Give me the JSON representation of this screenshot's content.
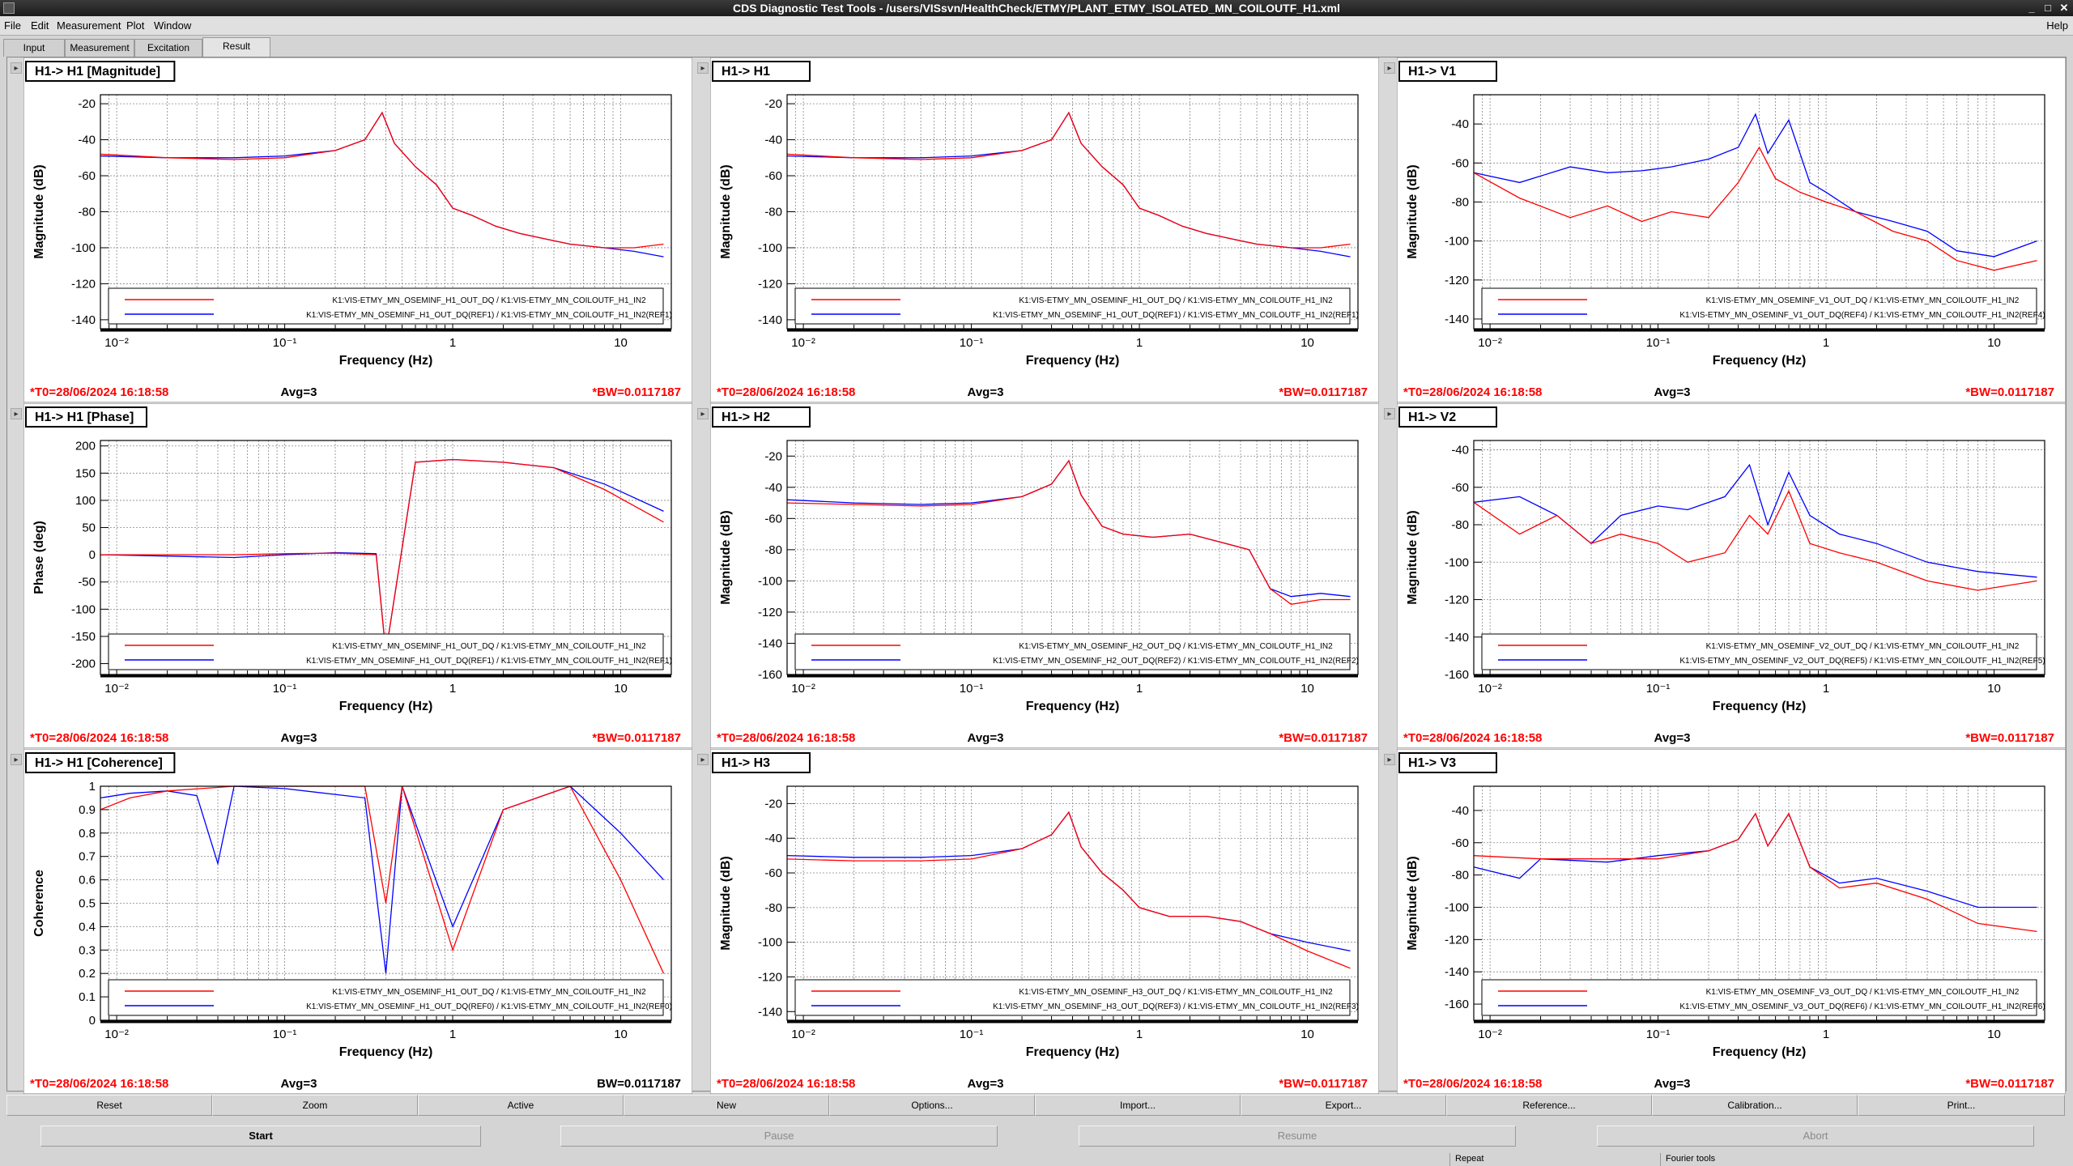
{
  "window": {
    "title": "CDS Diagnostic Test Tools - /users/VISsvn/HealthCheck/ETMY/PLANT_ETMY_ISOLATED_MN_COILOUTF_H1.xml"
  },
  "menu": {
    "items": [
      "File",
      "Edit",
      "Measurement",
      "Plot",
      "Window"
    ],
    "help": "Help"
  },
  "tabs": [
    "Input",
    "Measurement",
    "Excitation",
    "Result"
  ],
  "colors": {
    "ref": "#0000ff",
    "meas": "#ff0000"
  },
  "pane_footer": {
    "t0": "*T0=28/06/2024 16:18:58",
    "avg": "Avg=3",
    "bw": "*BW=0.0117187",
    "bw_plain": "BW=0.0117187"
  },
  "chart_data": [
    {
      "type": "line",
      "title": "H1-> H1 [Magnitude]",
      "xlabel": "Frequency (Hz)",
      "ylabel": "Magnitude (dB)",
      "xscale": "log",
      "xlim": [
        0.008,
        20
      ],
      "ylim": [
        -145,
        -15
      ],
      "yticks": [
        -140,
        -120,
        -100,
        -80,
        -60,
        -40,
        -20
      ],
      "xticks": [
        0.01,
        0.1,
        1,
        10
      ],
      "xtick_labels": [
        "10⁻²",
        "10⁻¹",
        "1",
        "10"
      ],
      "legend": [
        "K1:VIS-ETMY_MN_OSEMINF_H1_OUT_DQ / K1:VIS-ETMY_MN_COILOUTF_H1_IN2",
        "K1:VIS-ETMY_MN_OSEMINF_H1_OUT_DQ(REF1) / K1:VIS-ETMY_MN_COILOUTF_H1_IN2(REF1)"
      ],
      "series": [
        {
          "x": [
            0.008,
            0.02,
            0.05,
            0.1,
            0.2,
            0.3,
            0.38,
            0.45,
            0.6,
            0.8,
            1.0,
            1.3,
            1.8,
            2.5,
            3.5,
            5,
            8,
            12,
            18
          ],
          "values": [
            -48,
            -50,
            -51,
            -50,
            -46,
            -40,
            -25,
            -42,
            -55,
            -65,
            -78,
            -82,
            -88,
            -92,
            -95,
            -98,
            -100,
            -100,
            -98
          ]
        },
        {
          "x": [
            0.008,
            0.02,
            0.05,
            0.1,
            0.2,
            0.3,
            0.38,
            0.45,
            0.6,
            0.8,
            1.0,
            1.3,
            1.8,
            2.5,
            3.5,
            5,
            8,
            12,
            18
          ],
          "values": [
            -49,
            -50,
            -50,
            -49,
            -46,
            -40,
            -25,
            -42,
            -55,
            -65,
            -78,
            -82,
            -88,
            -92,
            -95,
            -98,
            -100,
            -102,
            -105
          ]
        }
      ]
    },
    {
      "type": "line",
      "title": "H1-> H1",
      "xlabel": "Frequency (Hz)",
      "ylabel": "Magnitude (dB)",
      "xscale": "log",
      "xlim": [
        0.008,
        20
      ],
      "ylim": [
        -145,
        -15
      ],
      "yticks": [
        -140,
        -120,
        -100,
        -80,
        -60,
        -40,
        -20
      ],
      "xticks": [
        0.01,
        0.1,
        1,
        10
      ],
      "xtick_labels": [
        "10⁻²",
        "10⁻¹",
        "1",
        "10"
      ],
      "legend": [
        "K1:VIS-ETMY_MN_OSEMINF_H1_OUT_DQ / K1:VIS-ETMY_MN_COILOUTF_H1_IN2",
        "K1:VIS-ETMY_MN_OSEMINF_H1_OUT_DQ(REF1) / K1:VIS-ETMY_MN_COILOUTF_H1_IN2(REF1)"
      ],
      "series": [
        {
          "x": [
            0.008,
            0.02,
            0.05,
            0.1,
            0.2,
            0.3,
            0.38,
            0.45,
            0.6,
            0.8,
            1.0,
            1.3,
            1.8,
            2.5,
            3.5,
            5,
            8,
            12,
            18
          ],
          "values": [
            -48,
            -50,
            -51,
            -50,
            -46,
            -40,
            -25,
            -42,
            -55,
            -65,
            -78,
            -82,
            -88,
            -92,
            -95,
            -98,
            -100,
            -100,
            -98
          ]
        },
        {
          "x": [
            0.008,
            0.02,
            0.05,
            0.1,
            0.2,
            0.3,
            0.38,
            0.45,
            0.6,
            0.8,
            1.0,
            1.3,
            1.8,
            2.5,
            3.5,
            5,
            8,
            12,
            18
          ],
          "values": [
            -49,
            -50,
            -50,
            -49,
            -46,
            -40,
            -25,
            -42,
            -55,
            -65,
            -78,
            -82,
            -88,
            -92,
            -95,
            -98,
            -100,
            -102,
            -105
          ]
        }
      ]
    },
    {
      "type": "line",
      "title": "H1-> V1",
      "xlabel": "Frequency (Hz)",
      "ylabel": "Magnitude (dB)",
      "xscale": "log",
      "xlim": [
        0.008,
        20
      ],
      "ylim": [
        -145,
        -25
      ],
      "yticks": [
        -140,
        -120,
        -100,
        -80,
        -60,
        -40
      ],
      "xticks": [
        0.01,
        0.1,
        1,
        10
      ],
      "xtick_labels": [
        "10⁻²",
        "10⁻¹",
        "1",
        "10"
      ],
      "legend": [
        "K1:VIS-ETMY_MN_OSEMINF_V1_OUT_DQ / K1:VIS-ETMY_MN_COILOUTF_H1_IN2",
        "K1:VIS-ETMY_MN_OSEMINF_V1_OUT_DQ(REF4) / K1:VIS-ETMY_MN_COILOUTF_H1_IN2(REF4)"
      ],
      "series": [
        {
          "x": [
            0.008,
            0.015,
            0.03,
            0.05,
            0.08,
            0.12,
            0.2,
            0.3,
            0.4,
            0.5,
            0.7,
            1.0,
            1.5,
            2.5,
            4,
            6,
            10,
            18
          ],
          "values": [
            -65,
            -78,
            -88,
            -82,
            -90,
            -85,
            -88,
            -70,
            -52,
            -68,
            -75,
            -80,
            -85,
            -95,
            -100,
            -110,
            -115,
            -110
          ]
        },
        {
          "x": [
            0.008,
            0.015,
            0.03,
            0.05,
            0.08,
            0.12,
            0.2,
            0.3,
            0.38,
            0.45,
            0.6,
            0.8,
            1.0,
            1.5,
            2.5,
            4,
            6,
            10,
            18
          ],
          "values": [
            -65,
            -70,
            -62,
            -65,
            -64,
            -62,
            -58,
            -52,
            -35,
            -55,
            -38,
            -70,
            -75,
            -85,
            -90,
            -95,
            -105,
            -108,
            -100
          ]
        }
      ]
    },
    {
      "type": "line",
      "title": "H1-> H1 [Phase]",
      "xlabel": "Frequency (Hz)",
      "ylabel": "Phase (deg)",
      "xscale": "log",
      "xlim": [
        0.008,
        20
      ],
      "ylim": [
        -220,
        210
      ],
      "yticks": [
        -200,
        -150,
        -100,
        -50,
        0,
        50,
        100,
        150,
        200
      ],
      "xticks": [
        0.01,
        0.1,
        1,
        10
      ],
      "xtick_labels": [
        "10⁻²",
        "10⁻¹",
        "1",
        "10"
      ],
      "legend": [
        "K1:VIS-ETMY_MN_OSEMINF_H1_OUT_DQ / K1:VIS-ETMY_MN_COILOUTF_H1_IN2",
        "K1:VIS-ETMY_MN_OSEMINF_H1_OUT_DQ(REF1) / K1:VIS-ETMY_MN_COILOUTF_H1_IN2(REF1)"
      ],
      "series": [
        {
          "x": [
            0.008,
            0.05,
            0.1,
            0.2,
            0.35,
            0.4,
            0.6,
            1.0,
            2,
            4,
            8,
            18
          ],
          "values": [
            0,
            0,
            2,
            3,
            0,
            -180,
            170,
            175,
            170,
            160,
            120,
            60
          ]
        },
        {
          "x": [
            0.008,
            0.05,
            0.1,
            0.2,
            0.35,
            0.4,
            0.6,
            1.0,
            2,
            4,
            8,
            18
          ],
          "values": [
            0,
            -5,
            0,
            4,
            2,
            -180,
            170,
            175,
            170,
            160,
            130,
            80
          ]
        }
      ]
    },
    {
      "type": "line",
      "title": "H1-> H2",
      "xlabel": "Frequency (Hz)",
      "ylabel": "Magnitude (dB)",
      "xscale": "log",
      "xlim": [
        0.008,
        20
      ],
      "ylim": [
        -160,
        -10
      ],
      "yticks": [
        -160,
        -140,
        -120,
        -100,
        -80,
        -60,
        -40,
        -20
      ],
      "xticks": [
        0.01,
        0.1,
        1,
        10
      ],
      "xtick_labels": [
        "10⁻²",
        "10⁻¹",
        "1",
        "10"
      ],
      "legend": [
        "K1:VIS-ETMY_MN_OSEMINF_H2_OUT_DQ / K1:VIS-ETMY_MN_COILOUTF_H1_IN2",
        "K1:VIS-ETMY_MN_OSEMINF_H2_OUT_DQ(REF2) / K1:VIS-ETMY_MN_COILOUTF_H1_IN2(REF2)"
      ],
      "series": [
        {
          "x": [
            0.008,
            0.02,
            0.05,
            0.1,
            0.2,
            0.3,
            0.38,
            0.45,
            0.6,
            0.8,
            1.2,
            2,
            3,
            4.5,
            6,
            8,
            12,
            18
          ],
          "values": [
            -50,
            -51,
            -52,
            -51,
            -46,
            -38,
            -23,
            -45,
            -65,
            -70,
            -72,
            -70,
            -75,
            -80,
            -105,
            -115,
            -112,
            -112
          ]
        },
        {
          "x": [
            0.008,
            0.02,
            0.05,
            0.1,
            0.2,
            0.3,
            0.38,
            0.45,
            0.6,
            0.8,
            1.2,
            2,
            3,
            4.5,
            6,
            8,
            12,
            18
          ],
          "values": [
            -48,
            -50,
            -51,
            -50,
            -46,
            -38,
            -23,
            -45,
            -65,
            -70,
            -72,
            -70,
            -75,
            -80,
            -105,
            -110,
            -108,
            -110
          ]
        }
      ]
    },
    {
      "type": "line",
      "title": "H1-> V2",
      "xlabel": "Frequency (Hz)",
      "ylabel": "Magnitude (dB)",
      "xscale": "log",
      "xlim": [
        0.008,
        20
      ],
      "ylim": [
        -160,
        -35
      ],
      "yticks": [
        -160,
        -140,
        -120,
        -100,
        -80,
        -60,
        -40
      ],
      "xticks": [
        0.01,
        0.1,
        1,
        10
      ],
      "xtick_labels": [
        "10⁻²",
        "10⁻¹",
        "1",
        "10"
      ],
      "legend": [
        "K1:VIS-ETMY_MN_OSEMINF_V2_OUT_DQ / K1:VIS-ETMY_MN_COILOUTF_H1_IN2",
        "K1:VIS-ETMY_MN_OSEMINF_V2_OUT_DQ(REF5) / K1:VIS-ETMY_MN_COILOUTF_H1_IN2(REF5)"
      ],
      "series": [
        {
          "x": [
            0.008,
            0.015,
            0.025,
            0.04,
            0.06,
            0.1,
            0.15,
            0.25,
            0.35,
            0.45,
            0.6,
            0.8,
            1.2,
            2,
            4,
            8,
            18
          ],
          "values": [
            -68,
            -85,
            -75,
            -90,
            -85,
            -90,
            -100,
            -95,
            -75,
            -85,
            -62,
            -90,
            -95,
            -100,
            -110,
            -115,
            -110
          ]
        },
        {
          "x": [
            0.008,
            0.015,
            0.025,
            0.04,
            0.06,
            0.1,
            0.15,
            0.25,
            0.35,
            0.45,
            0.6,
            0.8,
            1.2,
            2,
            4,
            8,
            18
          ],
          "values": [
            -68,
            -65,
            -75,
            -90,
            -75,
            -70,
            -72,
            -65,
            -48,
            -80,
            -52,
            -75,
            -85,
            -90,
            -100,
            -105,
            -108
          ]
        }
      ]
    },
    {
      "type": "line",
      "title": "H1-> H1 [Coherence]",
      "xlabel": "Frequency (Hz)",
      "ylabel": "Coherence",
      "xscale": "log",
      "xlim": [
        0.008,
        20
      ],
      "ylim": [
        0,
        1
      ],
      "yticks": [
        0,
        0.1,
        0.2,
        0.3,
        0.4,
        0.5,
        0.6,
        0.7,
        0.8,
        0.9,
        1
      ],
      "xticks": [
        0.01,
        0.1,
        1,
        10
      ],
      "xtick_labels": [
        "10⁻²",
        "10⁻¹",
        "1",
        "10"
      ],
      "legend": [
        "K1:VIS-ETMY_MN_OSEMINF_H1_OUT_DQ / K1:VIS-ETMY_MN_COILOUTF_H1_IN2",
        "K1:VIS-ETMY_MN_OSEMINF_H1_OUT_DQ(REF0) / K1:VIS-ETMY_MN_COILOUTF_H1_IN2(REF0)"
      ],
      "series": [
        {
          "x": [
            0.008,
            0.012,
            0.02,
            0.05,
            0.1,
            0.3,
            0.4,
            0.5,
            1,
            2,
            5,
            10,
            18
          ],
          "values": [
            0.9,
            0.95,
            0.98,
            1,
            1,
            1,
            0.5,
            1,
            0.3,
            0.9,
            1,
            0.6,
            0.2
          ]
        },
        {
          "x": [
            0.008,
            0.012,
            0.02,
            0.03,
            0.04,
            0.05,
            0.1,
            0.3,
            0.4,
            0.5,
            1,
            2,
            5,
            10,
            18
          ],
          "values": [
            0.95,
            0.97,
            0.98,
            0.96,
            0.67,
            1,
            0.99,
            0.95,
            0.2,
            1,
            0.4,
            0.9,
            1,
            0.8,
            0.6
          ]
        }
      ]
    },
    {
      "type": "line",
      "title": "H1-> H3",
      "xlabel": "Frequency (Hz)",
      "ylabel": "Magnitude (dB)",
      "xscale": "log",
      "xlim": [
        0.008,
        20
      ],
      "ylim": [
        -145,
        -10
      ],
      "yticks": [
        -140,
        -120,
        -100,
        -80,
        -60,
        -40,
        -20
      ],
      "xticks": [
        0.01,
        0.1,
        1,
        10
      ],
      "xtick_labels": [
        "10⁻²",
        "10⁻¹",
        "1",
        "10"
      ],
      "legend": [
        "K1:VIS-ETMY_MN_OSEMINF_H3_OUT_DQ / K1:VIS-ETMY_MN_COILOUTF_H1_IN2",
        "K1:VIS-ETMY_MN_OSEMINF_H3_OUT_DQ(REF3) / K1:VIS-ETMY_MN_COILOUTF_H1_IN2(REF3)"
      ],
      "series": [
        {
          "x": [
            0.008,
            0.02,
            0.05,
            0.1,
            0.2,
            0.3,
            0.38,
            0.45,
            0.6,
            0.8,
            1.0,
            1.5,
            2.5,
            4,
            6,
            10,
            18
          ],
          "values": [
            -52,
            -53,
            -53,
            -52,
            -46,
            -38,
            -25,
            -45,
            -60,
            -70,
            -80,
            -85,
            -85,
            -88,
            -95,
            -105,
            -115
          ]
        },
        {
          "x": [
            0.008,
            0.02,
            0.05,
            0.1,
            0.2,
            0.3,
            0.38,
            0.45,
            0.6,
            0.8,
            1.0,
            1.5,
            2.5,
            4,
            6,
            10,
            18
          ],
          "values": [
            -50,
            -51,
            -51,
            -50,
            -46,
            -38,
            -25,
            -45,
            -60,
            -70,
            -80,
            -85,
            -85,
            -88,
            -95,
            -100,
            -105
          ]
        }
      ]
    },
    {
      "type": "line",
      "title": "H1-> V3",
      "xlabel": "Frequency (Hz)",
      "ylabel": "Magnitude (dB)",
      "xscale": "log",
      "xlim": [
        0.008,
        20
      ],
      "ylim": [
        -170,
        -25
      ],
      "yticks": [
        -160,
        -140,
        -120,
        -100,
        -80,
        -60,
        -40
      ],
      "xticks": [
        0.01,
        0.1,
        1,
        10
      ],
      "xtick_labels": [
        "10⁻²",
        "10⁻¹",
        "1",
        "10"
      ],
      "legend": [
        "K1:VIS-ETMY_MN_OSEMINF_V3_OUT_DQ / K1:VIS-ETMY_MN_COILOUTF_H1_IN2",
        "K1:VIS-ETMY_MN_OSEMINF_V3_OUT_DQ(REF6) / K1:VIS-ETMY_MN_COILOUTF_H1_IN2(REF6)"
      ],
      "series": [
        {
          "x": [
            0.008,
            0.02,
            0.05,
            0.1,
            0.2,
            0.3,
            0.38,
            0.45,
            0.6,
            0.8,
            1.2,
            2,
            4,
            8,
            18
          ],
          "values": [
            -68,
            -70,
            -70,
            -70,
            -65,
            -58,
            -42,
            -62,
            -42,
            -75,
            -88,
            -85,
            -95,
            -110,
            -115
          ]
        },
        {
          "x": [
            0.008,
            0.015,
            0.02,
            0.05,
            0.1,
            0.2,
            0.3,
            0.38,
            0.45,
            0.6,
            0.8,
            1.2,
            2,
            4,
            8,
            18
          ],
          "values": [
            -75,
            -82,
            -70,
            -72,
            -68,
            -65,
            -58,
            -42,
            -62,
            -42,
            -75,
            -85,
            -82,
            -90,
            -100,
            -100
          ]
        }
      ]
    }
  ],
  "buttons": [
    "Reset",
    "Zoom",
    "Active",
    "New",
    "Options...",
    "Import...",
    "Export...",
    "Reference...",
    "Calibration...",
    "Print..."
  ],
  "run_buttons": [
    "Start",
    "Pause",
    "Resume",
    "Abort"
  ],
  "status": {
    "repeat": "Repeat",
    "fourier": "Fourier tools"
  }
}
